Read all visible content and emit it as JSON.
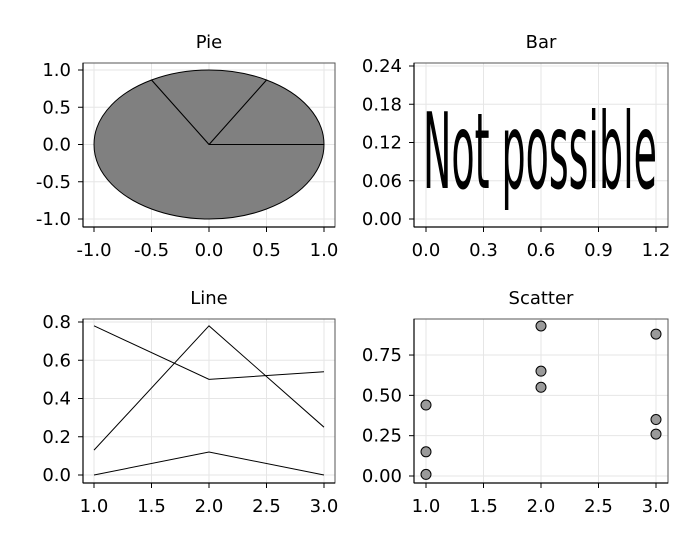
{
  "colors": {
    "fill": "#808080",
    "grid": "#e6e6e6",
    "axis": "#000000",
    "background": "#ffffff"
  },
  "chart_data": [
    {
      "type": "pie",
      "title": "Pie",
      "values": [
        1,
        1,
        4
      ],
      "xlim": [
        -1.0,
        1.0
      ],
      "ylim": [
        -1.0,
        1.0
      ],
      "x_ticks": [
        "-1.0",
        "-0.5",
        "0.0",
        "0.5",
        "1.0"
      ],
      "y_ticks": [
        "1.0",
        "0.5",
        "0.0",
        "-0.5",
        "-1.0"
      ],
      "grid": true
    },
    {
      "type": "bar",
      "title": "Bar",
      "annotation": "Not possible",
      "xlim": [
        0.0,
        1.2
      ],
      "ylim": [
        0.0,
        0.24
      ],
      "x_ticks": [
        "0.0",
        "0.3",
        "0.6",
        "0.9",
        "1.2"
      ],
      "y_ticks": [
        "0.24",
        "0.18",
        "0.12",
        "0.06",
        "0.00"
      ],
      "grid": true
    },
    {
      "type": "line",
      "title": "Line",
      "x": [
        1.0,
        2.0,
        3.0
      ],
      "series": [
        {
          "values": [
            0.13,
            0.78,
            0.25
          ]
        },
        {
          "values": [
            0.78,
            0.5,
            0.54
          ]
        },
        {
          "values": [
            0.0,
            0.12,
            0.0
          ]
        }
      ],
      "xlim": [
        1.0,
        3.0
      ],
      "ylim": [
        0.0,
        0.8
      ],
      "x_ticks": [
        "1.0",
        "1.5",
        "2.0",
        "2.5",
        "3.0"
      ],
      "y_ticks": [
        "0.8",
        "0.6",
        "0.4",
        "0.2",
        "0.0"
      ],
      "grid": true
    },
    {
      "type": "scatter",
      "title": "Scatter",
      "points": [
        {
          "x": 1.0,
          "y": 0.44
        },
        {
          "x": 1.0,
          "y": 0.15
        },
        {
          "x": 1.0,
          "y": 0.01
        },
        {
          "x": 2.0,
          "y": 0.93
        },
        {
          "x": 2.0,
          "y": 0.65
        },
        {
          "x": 2.0,
          "y": 0.55
        },
        {
          "x": 3.0,
          "y": 0.88
        },
        {
          "x": 3.0,
          "y": 0.35
        },
        {
          "x": 3.0,
          "y": 0.26
        }
      ],
      "xlim": [
        1.0,
        3.0
      ],
      "ylim": [
        0.0,
        0.93
      ],
      "x_ticks": [
        "1.0",
        "1.5",
        "2.0",
        "2.5",
        "3.0"
      ],
      "y_ticks": [
        "0.75",
        "0.50",
        "0.25",
        "0.00"
      ],
      "grid": true
    }
  ]
}
